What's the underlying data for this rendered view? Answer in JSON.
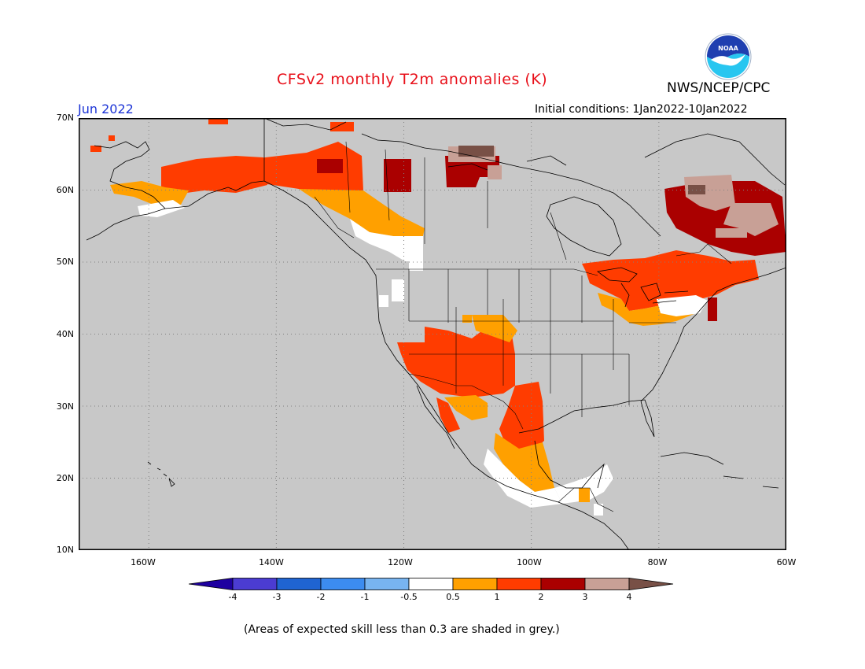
{
  "header": {
    "title": "CFSv2 monthly T2m anomalies (K)",
    "organization": "NWS/NCEP/CPC",
    "month": "Jun 2022",
    "initial_conditions": "Initial conditions: 1Jan2022-10Jan2022",
    "logo_text": "NOAA"
  },
  "map": {
    "lat_labels": [
      "70N",
      "60N",
      "50N",
      "40N",
      "30N",
      "20N",
      "10N"
    ],
    "lon_labels": [
      "160W",
      "140W",
      "120W",
      "100W",
      "80W",
      "60W"
    ],
    "lat_range": [
      10,
      70
    ],
    "lon_range": [
      -171,
      -60
    ],
    "background_color": "#c8c8c8",
    "grid": "dotted",
    "regions": [
      {
        "name": "Alaska",
        "anomaly_class": "1 to 2"
      },
      {
        "name": "Yukon / Northern British Columbia",
        "anomaly_class": "0.5 to 2"
      },
      {
        "name": "Pacific Northwest coast",
        "anomaly_class": "-0.5 to 0.5"
      },
      {
        "name": "Nunavut (northern Canada)",
        "anomaly_class": "2 to 4"
      },
      {
        "name": "US Southwest / Four Corners",
        "anomaly_class": "1 to 2"
      },
      {
        "name": "Northern Mexico / Texas border",
        "anomaly_class": "0.5 to 2"
      },
      {
        "name": "Central Mexico / Central America",
        "anomaly_class": "-0.5 to 0.5"
      },
      {
        "name": "Great Lakes / Northeast",
        "anomaly_class": "0.5 to 2"
      },
      {
        "name": "Quebec / Labrador",
        "anomaly_class": "2 to 4"
      }
    ]
  },
  "colorbar": {
    "colors": [
      "#1e00a0",
      "#4b3cd2",
      "#1f64d2",
      "#3c8cf0",
      "#78b4f0",
      "#ffffff",
      "#ffa000",
      "#ff3c00",
      "#aa0000",
      "#c8a096",
      "#785046"
    ],
    "labels": [
      "-4",
      "-3",
      "-2",
      "-1",
      "-0.5",
      "0.5",
      "1",
      "2",
      "3",
      "4"
    ]
  },
  "footnote": "(Areas of expected skill less than 0.3 are shaded in grey.)"
}
